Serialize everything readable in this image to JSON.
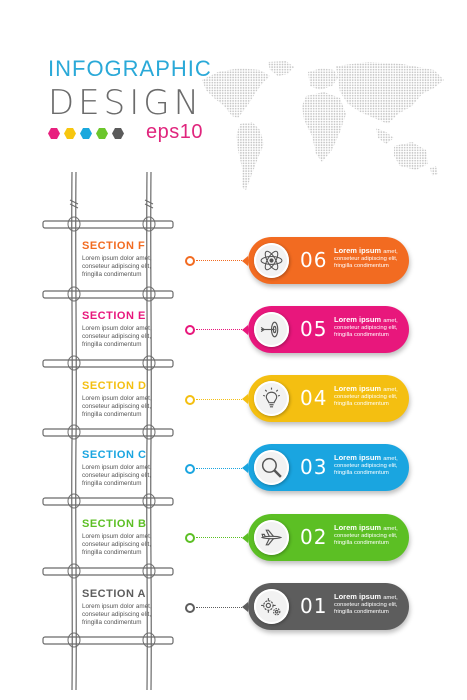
{
  "header": {
    "title_line1": "INFOGRAPHIC",
    "title_line2": "DESIGN",
    "badge": "eps10",
    "palette": [
      "#e8207f",
      "#f7c60f",
      "#1aa8dd",
      "#6cc62c",
      "#5b5b5b"
    ]
  },
  "sections": [
    {
      "title": "SECTION F",
      "line1": "Lorem ipsum dolor amet,",
      "line2": "conseteur adipiscing elit,",
      "line3": "fringilla condimentum"
    },
    {
      "title": "SECTION E",
      "line1": "Lorem ipsum dolor amet,",
      "line2": "conseteur adipiscing elit,",
      "line3": "fringilla condimentum"
    },
    {
      "title": "SECTION D",
      "line1": "Lorem ipsum dolor amet,",
      "line2": "conseteur adipiscing elit,",
      "line3": "fringilla condimentum"
    },
    {
      "title": "SECTION C",
      "line1": "Lorem ipsum dolor amet,",
      "line2": "conseteur adipiscing elit,",
      "line3": "fringilla condimentum"
    },
    {
      "title": "SECTION B",
      "line1": "Lorem ipsum dolor amet,",
      "line2": "conseteur adipiscing elit,",
      "line3": "fringilla condimentum"
    },
    {
      "title": "SECTION A",
      "line1": "Lorem ipsum dolor amet,",
      "line2": "conseteur adipiscing elit,",
      "line3": "fringilla condimentum"
    }
  ],
  "steps": [
    {
      "number": "06",
      "title": "Lorem ipsum",
      "title_suffix": "amet,",
      "line1": "conseteur adipiscing elit,",
      "line2": "fringilla condimentum",
      "color": "#f26b21",
      "icon": "atom-icon"
    },
    {
      "number": "05",
      "title": "Lorem ipsum",
      "title_suffix": "amet,",
      "line1": "conseteur adipiscing elit,",
      "line2": "fringilla condimentum",
      "color": "#e8177c",
      "icon": "target-arrow-icon"
    },
    {
      "number": "04",
      "title": "Lorem ipsum",
      "title_suffix": "amet,",
      "line1": "conseteur adipiscing elit,",
      "line2": "fringilla condimentum",
      "color": "#f4bf11",
      "icon": "lightbulb-icon"
    },
    {
      "number": "03",
      "title": "Lorem ipsum",
      "title_suffix": "amet,",
      "line1": "conseteur adipiscing elit,",
      "line2": "fringilla condimentum",
      "color": "#1aa5e0",
      "icon": "magnifier-icon"
    },
    {
      "number": "02",
      "title": "Lorem ipsum",
      "title_suffix": "amet,",
      "line1": "conseteur adipiscing elit,",
      "line2": "fringilla condimentum",
      "color": "#5cbf24",
      "icon": "airplane-icon"
    },
    {
      "number": "01",
      "title": "Lorem ipsum",
      "title_suffix": "amet,",
      "line1": "conseteur adipiscing elit,",
      "line2": "fringilla condimentum",
      "color": "#5d5d5d",
      "icon": "gears-icon"
    }
  ]
}
